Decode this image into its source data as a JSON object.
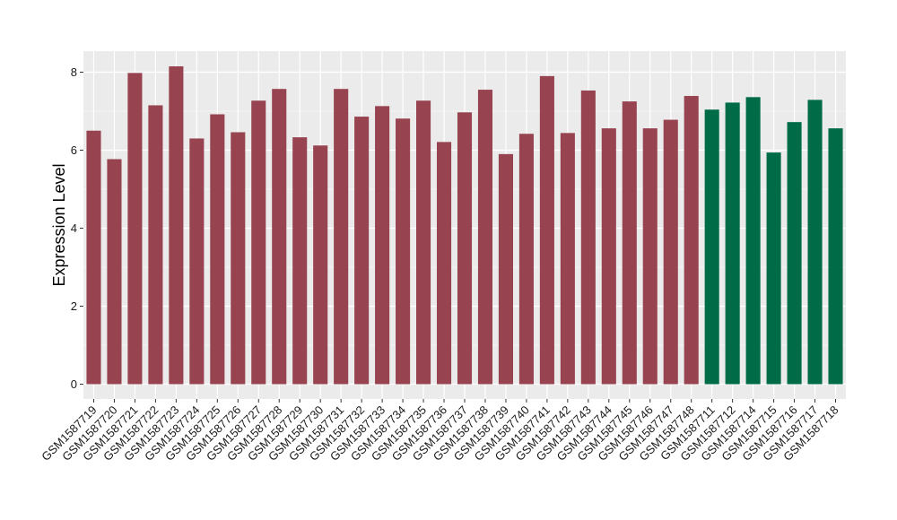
{
  "chart_data": {
    "type": "bar",
    "ylabel": "Expression Level",
    "xlabel": "",
    "ylim": [
      0,
      8.6
    ],
    "yticks": [
      0,
      2,
      4,
      6,
      8
    ],
    "grid": true,
    "background": "#ebebeb",
    "grid_color": "#ffffff",
    "group_colors": {
      "group1": "#974350",
      "group2": "#006b47"
    },
    "categories": [
      "GSM1587719",
      "GSM1587720",
      "GSM1587721",
      "GSM1587722",
      "GSM1587723",
      "GSM1587724",
      "GSM1587725",
      "GSM1587726",
      "GSM1587727",
      "GSM1587728",
      "GSM1587729",
      "GSM1587730",
      "GSM1587731",
      "GSM1587732",
      "GSM1587733",
      "GSM1587734",
      "GSM1587735",
      "GSM1587736",
      "GSM1587737",
      "GSM1587738",
      "GSM1587739",
      "GSM1587740",
      "GSM1587741",
      "GSM1587742",
      "GSM1587743",
      "GSM1587744",
      "GSM1587745",
      "GSM1587746",
      "GSM1587747",
      "GSM1587748",
      "GSM1587711",
      "GSM1587712",
      "GSM1587714",
      "GSM1587715",
      "GSM1587716",
      "GSM1587717",
      "GSM1587718"
    ],
    "values": [
      6.5,
      5.77,
      7.98,
      7.15,
      8.15,
      6.3,
      6.92,
      6.46,
      7.27,
      7.57,
      6.33,
      6.12,
      7.57,
      6.86,
      7.13,
      6.81,
      7.27,
      6.21,
      6.97,
      7.55,
      5.9,
      6.42,
      7.9,
      6.44,
      7.53,
      6.56,
      7.25,
      6.56,
      6.78,
      7.39,
      7.04,
      7.22,
      7.36,
      5.94,
      6.72,
      7.29,
      6.56
    ],
    "groups": [
      "group1",
      "group1",
      "group1",
      "group1",
      "group1",
      "group1",
      "group1",
      "group1",
      "group1",
      "group1",
      "group1",
      "group1",
      "group1",
      "group1",
      "group1",
      "group1",
      "group1",
      "group1",
      "group1",
      "group1",
      "group1",
      "group1",
      "group1",
      "group1",
      "group1",
      "group1",
      "group1",
      "group1",
      "group1",
      "group1",
      "group2",
      "group2",
      "group2",
      "group2",
      "group2",
      "group2",
      "group2"
    ]
  }
}
